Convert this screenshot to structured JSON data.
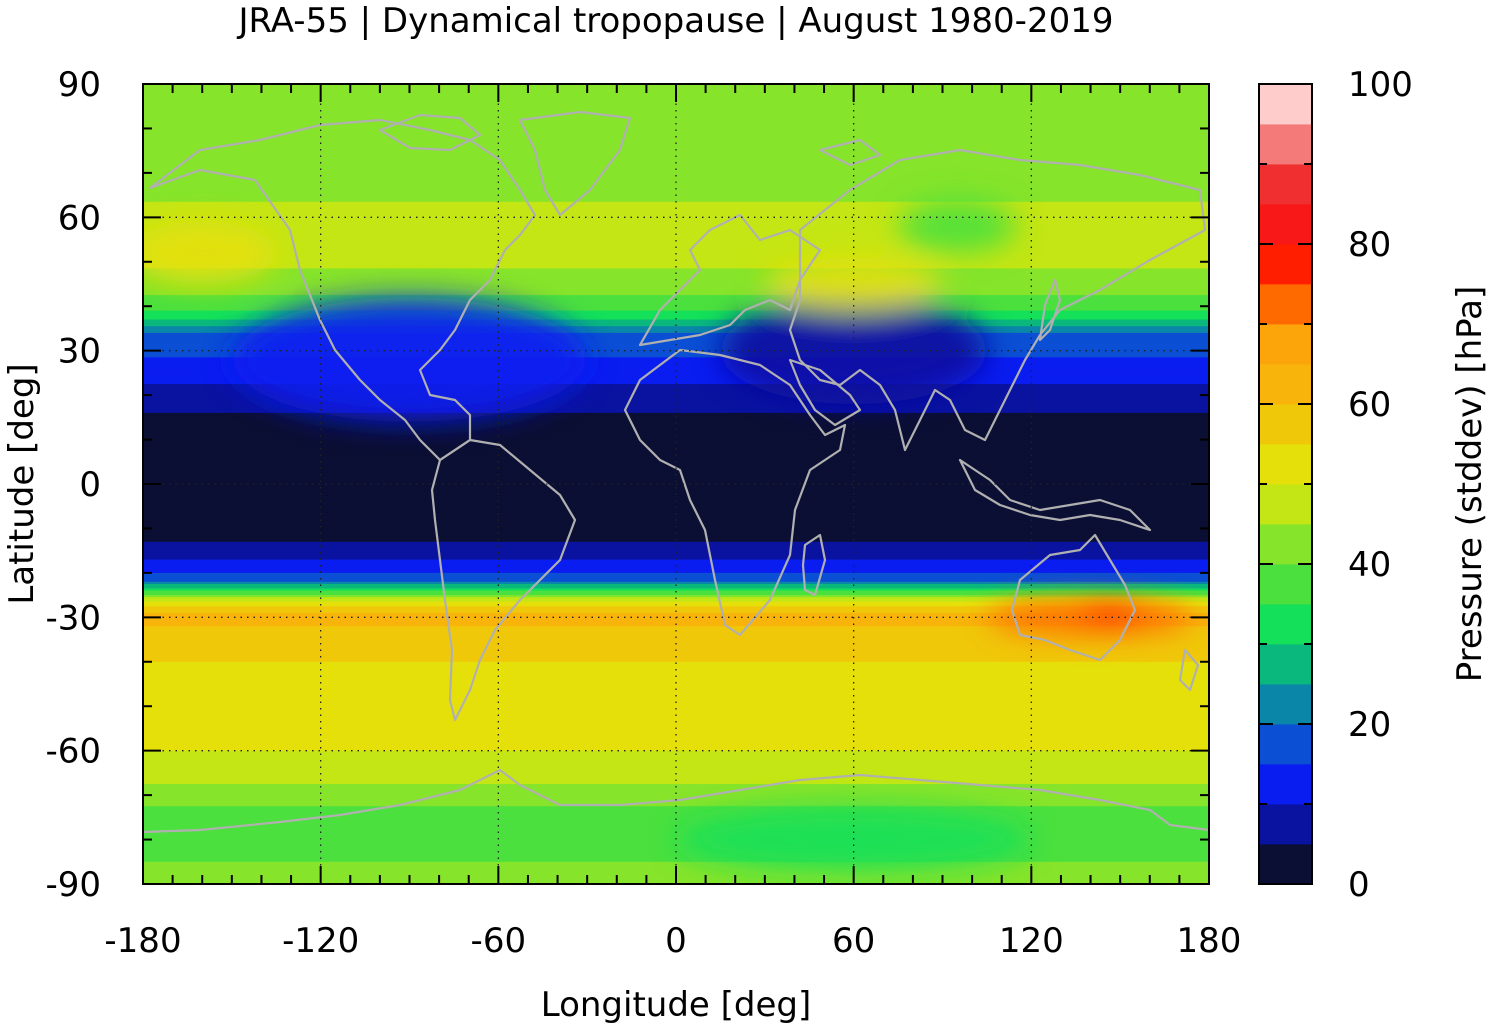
{
  "title": "JRA-55 | Dynamical tropopause | August 1980-2019",
  "chart_data": {
    "type": "heatmap",
    "title": "JRA-55 | Dynamical tropopause | August 1980-2019",
    "xlabel": "Longitude [deg]",
    "ylabel": "Latitude [deg]",
    "xlim": [
      -180,
      180
    ],
    "ylim": [
      -90,
      90
    ],
    "x_ticks": [
      "-180",
      "-120",
      "-60",
      "0",
      "60",
      "120",
      "180"
    ],
    "y_ticks": [
      "90",
      "60",
      "30",
      "0",
      "-30",
      "-60",
      "-90"
    ],
    "grid": true,
    "coastlines": true,
    "colorbar": {
      "label": "Pressure (stddev) [hPa]",
      "range": [
        0,
        100
      ],
      "step": 5,
      "ticks": [
        "0",
        "20",
        "40",
        "60",
        "80",
        "100"
      ],
      "levels": [
        {
          "from": 0,
          "to": 5,
          "color": "#0b0f33"
        },
        {
          "from": 5,
          "to": 10,
          "color": "#0a13a0"
        },
        {
          "from": 10,
          "to": 15,
          "color": "#0a1df0"
        },
        {
          "from": 15,
          "to": 20,
          "color": "#0a4fd4"
        },
        {
          "from": 20,
          "to": 25,
          "color": "#0a86a8"
        },
        {
          "from": 25,
          "to": 30,
          "color": "#0ab87e"
        },
        {
          "from": 30,
          "to": 35,
          "color": "#14e05a"
        },
        {
          "from": 35,
          "to": 40,
          "color": "#4be03e"
        },
        {
          "from": 40,
          "to": 45,
          "color": "#86e42a"
        },
        {
          "from": 45,
          "to": 50,
          "color": "#c4e614"
        },
        {
          "from": 50,
          "to": 55,
          "color": "#e6e00a"
        },
        {
          "from": 55,
          "to": 60,
          "color": "#f0c80a"
        },
        {
          "from": 60,
          "to": 65,
          "color": "#f8b40a"
        },
        {
          "from": 65,
          "to": 70,
          "color": "#fba50a"
        },
        {
          "from": 70,
          "to": 75,
          "color": "#ff6a00"
        },
        {
          "from": 75,
          "to": 80,
          "color": "#ff1e00"
        },
        {
          "from": 80,
          "to": 85,
          "color": "#f81818"
        },
        {
          "from": 85,
          "to": 90,
          "color": "#f03030"
        },
        {
          "from": 90,
          "to": 95,
          "color": "#f47a7a"
        },
        {
          "from": 95,
          "to": 100,
          "color": "#ffcccc"
        }
      ]
    },
    "zonal_profile": [
      {
        "lat": 90,
        "value": 43
      },
      {
        "lat": 80,
        "value": 43
      },
      {
        "lat": 70,
        "value": 41
      },
      {
        "lat": 60,
        "value": 47
      },
      {
        "lat": 55,
        "value": 50
      },
      {
        "lat": 45,
        "value": 42
      },
      {
        "lat": 40,
        "value": 38
      },
      {
        "lat": 37,
        "value": 30
      },
      {
        "lat": 34,
        "value": 20
      },
      {
        "lat": 30,
        "value": 16
      },
      {
        "lat": 25,
        "value": 12
      },
      {
        "lat": 20,
        "value": 8
      },
      {
        "lat": 15,
        "value": 4
      },
      {
        "lat": 0,
        "value": 3
      },
      {
        "lat": -12,
        "value": 4
      },
      {
        "lat": -16,
        "value": 8
      },
      {
        "lat": -19,
        "value": 13
      },
      {
        "lat": -22,
        "value": 20
      },
      {
        "lat": -24,
        "value": 34
      },
      {
        "lat": -26,
        "value": 48
      },
      {
        "lat": -28,
        "value": 58
      },
      {
        "lat": -30,
        "value": 63
      },
      {
        "lat": -33,
        "value": 58
      },
      {
        "lat": -40,
        "value": 55
      },
      {
        "lat": -50,
        "value": 53
      },
      {
        "lat": -60,
        "value": 50
      },
      {
        "lat": -65,
        "value": 48
      },
      {
        "lat": -70,
        "value": 42
      },
      {
        "lat": -75,
        "value": 38
      },
      {
        "lat": -80,
        "value": 36
      },
      {
        "lat": -85,
        "value": 40
      },
      {
        "lat": -90,
        "value": 42
      }
    ],
    "anomalies": [
      {
        "name": "north-america-low",
        "lon": -90,
        "lat": 28,
        "value": 12
      },
      {
        "name": "asian-monsoon-low",
        "lon": 60,
        "lat": 30,
        "value": 6
      },
      {
        "name": "north-pacific-high",
        "lon": -160,
        "lat": 52,
        "value": 52
      },
      {
        "name": "eurasia-band",
        "lon": 60,
        "lat": 45,
        "value": 54
      },
      {
        "name": "australia-max",
        "lon": 140,
        "lat": -30,
        "value": 72
      },
      {
        "name": "australia-peak",
        "lon": 147,
        "lat": -29,
        "value": 78
      },
      {
        "name": "antarctic-low",
        "lon": 60,
        "lat": -80,
        "value": 34
      },
      {
        "name": "siberia-low",
        "lon": 95,
        "lat": 58,
        "value": 35
      }
    ],
    "coastline_color": "#b0b0b0"
  }
}
